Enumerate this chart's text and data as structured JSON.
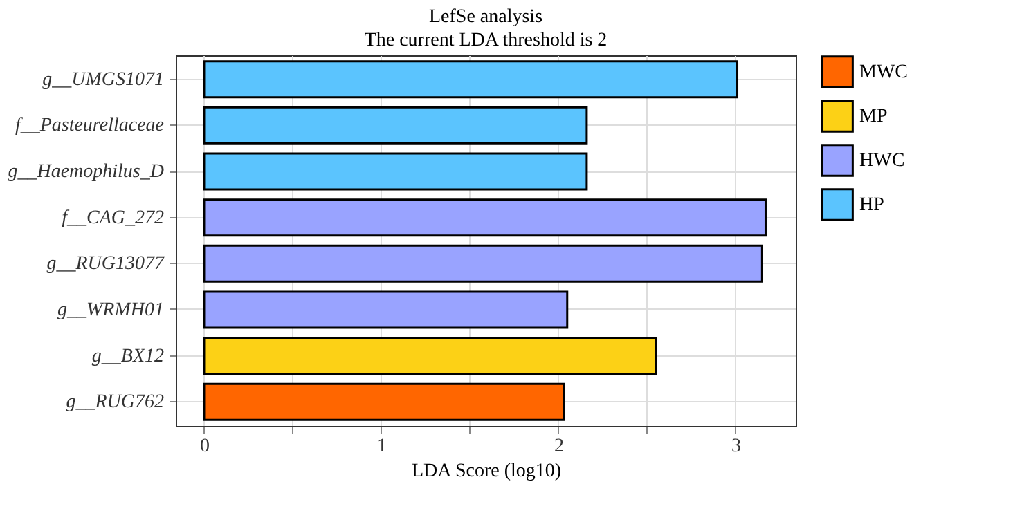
{
  "chart_data": {
    "type": "bar",
    "orientation": "horizontal",
    "title": "LefSe analysis",
    "subtitle": "The current LDA threshold is 2",
    "xlabel": "LDA Score (log10)",
    "categories": [
      "g__UMGS1071",
      "f__Pasteurellaceae",
      "g__Haemophilus_D",
      "f__CAG_272",
      "g__RUG13077",
      "g__WRMH01",
      "g__BX12",
      "g__RUG762"
    ],
    "series": [
      {
        "name": "MWC",
        "color": "#ff6600",
        "values": [
          null,
          null,
          null,
          null,
          null,
          null,
          null,
          2.03
        ]
      },
      {
        "name": "MP",
        "color": "#fcd116",
        "values": [
          null,
          null,
          null,
          null,
          null,
          null,
          2.55,
          null
        ]
      },
      {
        "name": "HWC",
        "color": "#99a3ff",
        "values": [
          null,
          null,
          null,
          3.17,
          3.15,
          2.05,
          null,
          null
        ]
      },
      {
        "name": "HP",
        "color": "#5bc4fe",
        "values": [
          3.01,
          2.16,
          2.16,
          null,
          null,
          null,
          null,
          null
        ]
      }
    ],
    "xlim": [
      -0.16,
      3.34
    ],
    "xticks": [
      0,
      {
        "value": 0.5,
        "label": null
      },
      1,
      {
        "value": 1.5,
        "label": null
      },
      2,
      {
        "value": 2.5,
        "label": null
      },
      3
    ],
    "grid": true,
    "legend": "right"
  }
}
